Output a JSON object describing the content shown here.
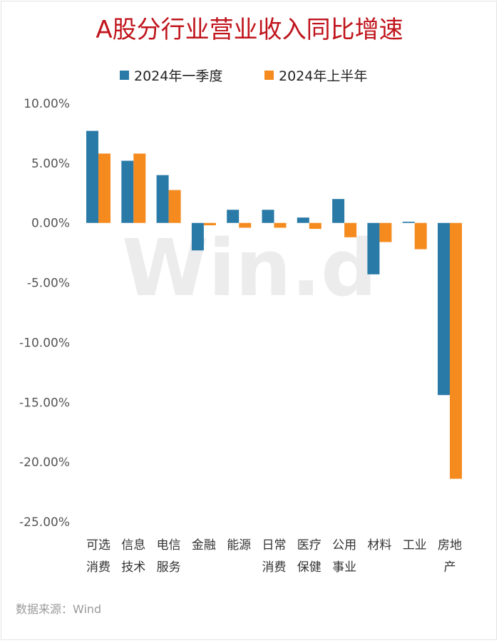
{
  "colors": {
    "title": "#c0141c",
    "series1": "#2a7aa8",
    "series2": "#f58a1f"
  },
  "watermark": "Win.d",
  "source": "数据来源：Wind",
  "chart_data": {
    "type": "bar",
    "title": "A股分行业营业收入同比增速",
    "categories": [
      [
        "可选",
        "消费"
      ],
      [
        "信息",
        "技术"
      ],
      [
        "电信",
        "服务"
      ],
      [
        "金融"
      ],
      [
        "能源"
      ],
      [
        "日常",
        "消费"
      ],
      [
        "医疗",
        "保健"
      ],
      [
        "公用",
        "事业"
      ],
      [
        "材料"
      ],
      [
        "工业"
      ],
      [
        "房地",
        "产"
      ]
    ],
    "series": [
      {
        "name": "2024年一季度",
        "color": "#2a7aa8",
        "values": [
          7.7,
          5.2,
          4.0,
          -2.3,
          1.1,
          1.1,
          0.45,
          2.0,
          -4.3,
          0.1,
          -14.4
        ]
      },
      {
        "name": "2024年上半年",
        "color": "#f58a1f",
        "values": [
          5.8,
          5.8,
          2.75,
          -0.2,
          -0.4,
          -0.4,
          -0.5,
          -1.2,
          -1.6,
          -2.2,
          -21.4
        ]
      }
    ],
    "yticks": [
      "10.00%",
      "5.00%",
      "0.00%",
      "-5.00%",
      "-10.00%",
      "-15.00%",
      "-20.00%",
      "-25.00%"
    ],
    "ytick_values": [
      10,
      5,
      0,
      -5,
      -10,
      -15,
      -20,
      -25
    ],
    "ylim": [
      -25,
      10
    ],
    "grid": false,
    "legend": "top"
  }
}
